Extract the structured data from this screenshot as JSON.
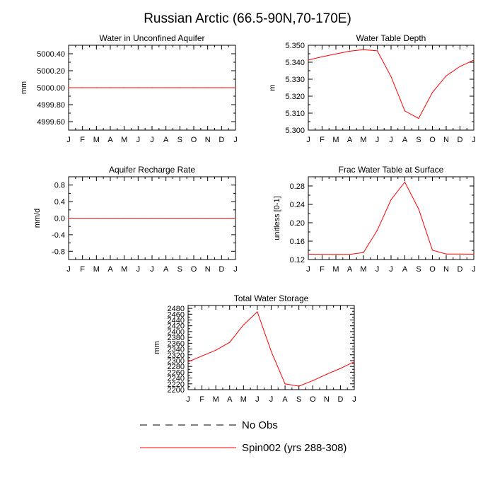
{
  "figure_title": "Russian Arctic (66.5-90N,70-170E)",
  "chart_data": [
    {
      "type": "line",
      "title": "Water in Unconfined Aquifer",
      "xlabel": "",
      "ylabel": "mm",
      "categories": [
        "J",
        "F",
        "M",
        "A",
        "M",
        "J",
        "J",
        "A",
        "S",
        "O",
        "N",
        "D",
        "J"
      ],
      "ylim": [
        4999.5,
        5000.5
      ],
      "yticks": [
        4999.6,
        4999.8,
        5000.0,
        5000.2,
        5000.4
      ],
      "ytick_labels": [
        "4999.60",
        "4999.80",
        "5000.00",
        "5000.20",
        "5000.40"
      ],
      "series": [
        {
          "name": "Spin002 (yrs 288-308)",
          "color": "#ff0000",
          "values": [
            5000,
            5000,
            5000,
            5000,
            5000,
            5000,
            5000,
            5000,
            5000,
            5000,
            5000,
            5000,
            5000
          ]
        }
      ]
    },
    {
      "type": "line",
      "title": "Water Table Depth",
      "xlabel": "",
      "ylabel": "m",
      "categories": [
        "J",
        "F",
        "M",
        "A",
        "M",
        "J",
        "J",
        "A",
        "S",
        "O",
        "N",
        "D",
        "J"
      ],
      "ylim": [
        5.3,
        5.35
      ],
      "yticks": [
        5.3,
        5.31,
        5.32,
        5.33,
        5.34,
        5.35
      ],
      "ytick_labels": [
        "5.300",
        "5.310",
        "5.320",
        "5.330",
        "5.340",
        "5.350"
      ],
      "series": [
        {
          "name": "Spin002 (yrs 288-308)",
          "color": "#ff0000",
          "values": [
            5.3413,
            5.3432,
            5.3449,
            5.3465,
            5.3474,
            5.3467,
            5.3315,
            5.3113,
            5.3069,
            5.3222,
            5.332,
            5.3375,
            5.3413
          ]
        }
      ]
    },
    {
      "type": "line",
      "title": "Aquifer Recharge Rate",
      "xlabel": "",
      "ylabel": "mm/d",
      "categories": [
        "J",
        "F",
        "M",
        "A",
        "M",
        "J",
        "J",
        "A",
        "S",
        "O",
        "N",
        "D",
        "J"
      ],
      "ylim": [
        -1.0,
        1.0
      ],
      "yticks": [
        -0.8,
        -0.4,
        0.0,
        0.4,
        0.8
      ],
      "ytick_labels": [
        "-0.8",
        "-0.4",
        "0.0",
        "0.4",
        "0.8"
      ],
      "series": [
        {
          "name": "Spin002 (yrs 288-308)",
          "color": "#ff0000",
          "values": [
            0,
            0,
            0,
            0,
            0,
            0,
            0,
            0,
            0,
            0,
            0,
            0,
            0
          ]
        }
      ]
    },
    {
      "type": "line",
      "title": "Frac Water Table at Surface",
      "xlabel": "",
      "ylabel": "unitless [0-1]",
      "categories": [
        "J",
        "F",
        "M",
        "A",
        "M",
        "J",
        "J",
        "A",
        "S",
        "O",
        "N",
        "D",
        "J"
      ],
      "ylim": [
        0.12,
        0.3
      ],
      "yticks": [
        0.12,
        0.16,
        0.2,
        0.24,
        0.28
      ],
      "ytick_labels": [
        "0.12",
        "0.16",
        "0.20",
        "0.24",
        "0.28"
      ],
      "series": [
        {
          "name": "Spin002 (yrs 288-308)",
          "color": "#ff0000",
          "values": [
            0.1315,
            0.1313,
            0.1312,
            0.1313,
            0.1352,
            0.1835,
            0.2502,
            0.2885,
            0.23,
            0.1403,
            0.132,
            0.1318,
            0.1315
          ]
        }
      ]
    },
    {
      "type": "line",
      "title": "Total Water Storage",
      "xlabel": "",
      "ylabel": "mm",
      "categories": [
        "J",
        "F",
        "M",
        "A",
        "M",
        "J",
        "J",
        "A",
        "S",
        "O",
        "N",
        "D",
        "J"
      ],
      "ylim": [
        2200,
        2490
      ],
      "yticks": [
        2200,
        2220,
        2240,
        2260,
        2280,
        2300,
        2320,
        2340,
        2360,
        2380,
        2400,
        2420,
        2440,
        2460,
        2480
      ],
      "ytick_labels": [
        "2200",
        "2220",
        "2240",
        "2260",
        "2280",
        "2300",
        "2320",
        "2340",
        "2360",
        "2380",
        "2400",
        "2420",
        "2440",
        "2460",
        "2480"
      ],
      "series": [
        {
          "name": "Spin002 (yrs 288-308)",
          "color": "#ff0000",
          "values": [
            2296,
            2316,
            2336,
            2363,
            2423,
            2468,
            2332,
            2220,
            2212,
            2231,
            2253,
            2273,
            2296
          ]
        }
      ]
    }
  ],
  "legend": [
    {
      "label": "No Obs",
      "style": "dashed",
      "color": "#000000"
    },
    {
      "label": "Spin002 (yrs 288-308)",
      "style": "solid",
      "color": "#ff0000"
    }
  ]
}
